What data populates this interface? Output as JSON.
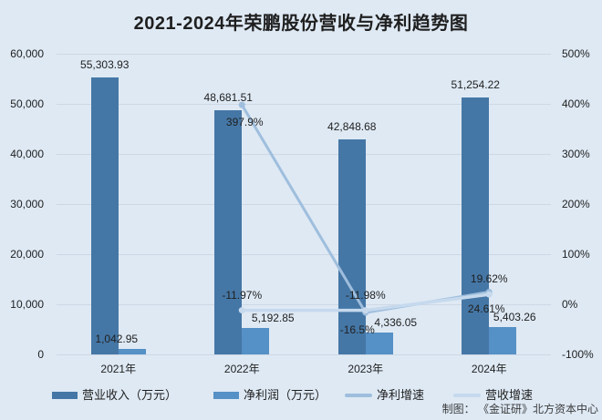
{
  "title": "2021-2024年荣鹏股份营收与净利趋势图",
  "credit": "制图： 《金证研》北方资本中心",
  "colors": {
    "background": "#dee9f4",
    "gridline": "#cdd8e5",
    "text": "#1f1f1f",
    "credit_text": "#3c3c3c",
    "revenue_bar": "#4577a6",
    "profit_bar": "#5590c6",
    "profit_growth_line": "#9fbedd",
    "revenue_growth_line": "#c6d9ed"
  },
  "chart_data": {
    "type": "bar",
    "subtype": "grouped-bar-with-lines-dual-axis",
    "title": "2021-2024年荣鹏股份营收与净利趋势图",
    "categories": [
      "2021年",
      "2022年",
      "2023年",
      "2024年"
    ],
    "left_axis": {
      "min": 0,
      "max": 60000,
      "ticks": [
        "0",
        "10,000",
        "20,000",
        "30,000",
        "40,000",
        "50,000",
        "60,000"
      ]
    },
    "right_axis": {
      "min": -100,
      "max": 500,
      "ticks": [
        "-100%",
        "0%",
        "100%",
        "200%",
        "300%",
        "400%",
        "500%"
      ]
    },
    "grid": true,
    "legend_position": "bottom",
    "bar_series": [
      {
        "name": "营业收入（万元）",
        "axis": "left",
        "color_key": "revenue_bar",
        "values": [
          55303.93,
          48681.51,
          42848.68,
          51254.22
        ],
        "labels": [
          "55,303.93",
          "48,681.51",
          "42,848.68",
          "51,254.22"
        ]
      },
      {
        "name": "净利润（万元）",
        "axis": "left",
        "color_key": "profit_bar",
        "values": [
          1042.95,
          5192.85,
          4336.05,
          5403.26
        ],
        "labels": [
          "1,042.95",
          "5,192.85",
          "4,336.05",
          "5,403.26"
        ],
        "label_dx": [
          -17,
          19,
          18,
          13
        ]
      }
    ],
    "line_series": [
      {
        "name": "净利增速",
        "axis": "right",
        "color_key": "profit_growth_line",
        "values": [
          null,
          397.9,
          -16.5,
          24.61
        ],
        "labels": [
          "",
          "397.9%",
          "-16.5%",
          "24.61%"
        ],
        "label_position": "below",
        "label_dx": [
          0,
          3,
          -9,
          -3
        ]
      },
      {
        "name": "营收增速",
        "axis": "right",
        "color_key": "revenue_growth_line",
        "values": [
          null,
          -11.97,
          -11.98,
          19.62
        ],
        "labels": [
          "",
          "-11.97%",
          "-11.98%",
          "19.62%"
        ],
        "label_position": "above",
        "label_dx": [
          0,
          0,
          0,
          0
        ]
      }
    ],
    "legend": [
      "营业收入（万元）",
      "净利润（万元）",
      "净利增速",
      "营收增速"
    ]
  }
}
